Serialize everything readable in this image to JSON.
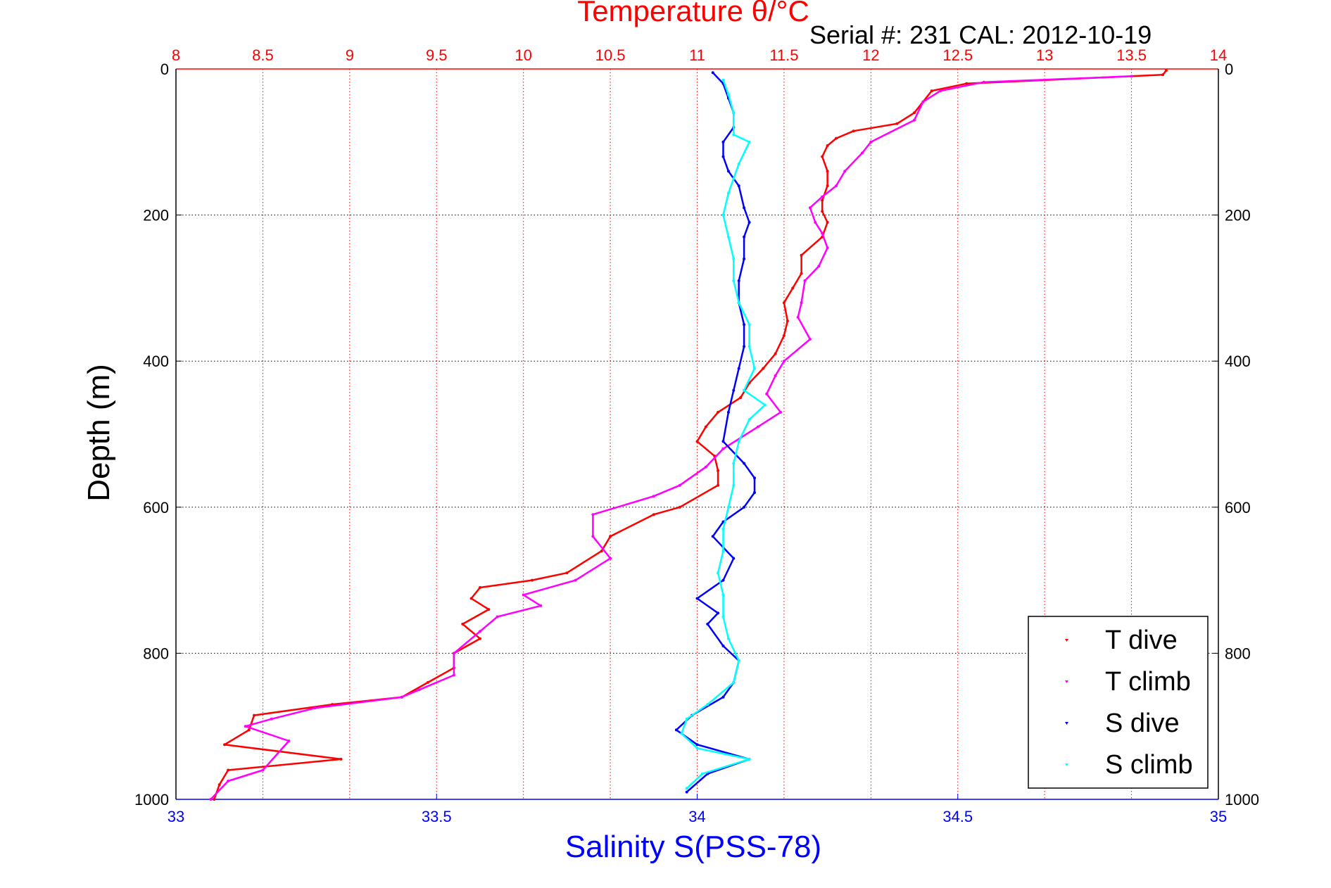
{
  "chart_data": {
    "type": "scatter",
    "title": "Temperature θ/°C",
    "serial_text": "Serial #: 231  CAL: 2012-10-19",
    "xlabel_bottom": "Salinity S(PSS-78)",
    "ylabel": "Depth (m)",
    "temperature_axis": {
      "range": [
        8,
        14
      ],
      "ticks": [
        "8",
        "8.5",
        "9",
        "9.5",
        "10",
        "10.5",
        "11",
        "11.5",
        "12",
        "12.5",
        "13",
        "13.5",
        "14"
      ]
    },
    "salinity_axis": {
      "range": [
        33,
        35
      ],
      "ticks": [
        "33",
        "33.5",
        "34",
        "34.5",
        "35"
      ]
    },
    "depth_axis": {
      "range": [
        0,
        1000
      ],
      "reversed": true,
      "ticks": [
        "0",
        "200",
        "400",
        "600",
        "800",
        "1000"
      ]
    },
    "grid": true,
    "legend_position": "bottom-right",
    "colors": {
      "t_dive": "#ff0000",
      "t_climb": "#ff00ff",
      "s_dive": "#0000ff",
      "s_climb": "#00ffff"
    },
    "series": [
      {
        "name": "T dive",
        "axis": "temperature",
        "points": [
          [
            13.7,
            2
          ],
          [
            13.68,
            8
          ],
          [
            12.55,
            20
          ],
          [
            12.35,
            30
          ],
          [
            12.3,
            45
          ],
          [
            12.25,
            60
          ],
          [
            12.15,
            75
          ],
          [
            11.9,
            85
          ],
          [
            11.8,
            95
          ],
          [
            11.75,
            105
          ],
          [
            11.72,
            120
          ],
          [
            11.75,
            140
          ],
          [
            11.75,
            160
          ],
          [
            11.72,
            180
          ],
          [
            11.72,
            195
          ],
          [
            11.75,
            210
          ],
          [
            11.72,
            230
          ],
          [
            11.6,
            255
          ],
          [
            11.6,
            280
          ],
          [
            11.55,
            300
          ],
          [
            11.5,
            320
          ],
          [
            11.52,
            345
          ],
          [
            11.5,
            365
          ],
          [
            11.45,
            390
          ],
          [
            11.38,
            410
          ],
          [
            11.3,
            430
          ],
          [
            11.25,
            450
          ],
          [
            11.12,
            470
          ],
          [
            11.05,
            490
          ],
          [
            11.0,
            510
          ],
          [
            11.1,
            530
          ],
          [
            11.12,
            550
          ],
          [
            11.12,
            570
          ],
          [
            10.9,
            600
          ],
          [
            10.75,
            610
          ],
          [
            10.5,
            640
          ],
          [
            10.45,
            660
          ],
          [
            10.25,
            690
          ],
          [
            10.05,
            700
          ],
          [
            9.75,
            710
          ],
          [
            9.7,
            725
          ],
          [
            9.8,
            740
          ],
          [
            9.65,
            760
          ],
          [
            9.75,
            780
          ],
          [
            9.6,
            800
          ],
          [
            9.6,
            820
          ],
          [
            9.45,
            840
          ],
          [
            9.3,
            860
          ],
          [
            8.9,
            870
          ],
          [
            8.45,
            885
          ],
          [
            8.42,
            905
          ],
          [
            8.28,
            925
          ],
          [
            8.95,
            945
          ],
          [
            8.3,
            960
          ],
          [
            8.25,
            980
          ],
          [
            8.22,
            1000
          ]
        ]
      },
      {
        "name": "T climb",
        "axis": "temperature",
        "points": [
          [
            13.5,
            10
          ],
          [
            12.65,
            18
          ],
          [
            12.4,
            30
          ],
          [
            12.3,
            45
          ],
          [
            12.25,
            70
          ],
          [
            12.0,
            100
          ],
          [
            11.95,
            115
          ],
          [
            11.85,
            140
          ],
          [
            11.8,
            160
          ],
          [
            11.72,
            175
          ],
          [
            11.65,
            190
          ],
          [
            11.68,
            210
          ],
          [
            11.72,
            225
          ],
          [
            11.75,
            245
          ],
          [
            11.7,
            270
          ],
          [
            11.62,
            290
          ],
          [
            11.6,
            320
          ],
          [
            11.58,
            340
          ],
          [
            11.65,
            370
          ],
          [
            11.5,
            400
          ],
          [
            11.45,
            420
          ],
          [
            11.4,
            445
          ],
          [
            11.48,
            470
          ],
          [
            11.35,
            490
          ],
          [
            11.15,
            520
          ],
          [
            11.05,
            545
          ],
          [
            10.9,
            570
          ],
          [
            10.75,
            585
          ],
          [
            10.4,
            610
          ],
          [
            10.4,
            640
          ],
          [
            10.5,
            670
          ],
          [
            10.3,
            700
          ],
          [
            10.0,
            720
          ],
          [
            10.1,
            735
          ],
          [
            9.85,
            750
          ],
          [
            9.75,
            770
          ],
          [
            9.6,
            800
          ],
          [
            9.6,
            830
          ],
          [
            9.4,
            850
          ],
          [
            9.3,
            860
          ],
          [
            8.8,
            875
          ],
          [
            8.55,
            890
          ],
          [
            8.4,
            900
          ],
          [
            8.65,
            920
          ],
          [
            8.5,
            960
          ],
          [
            8.3,
            975
          ],
          [
            8.2,
            1000
          ]
        ]
      },
      {
        "name": "S dive",
        "axis": "salinity",
        "points": [
          [
            34.03,
            5
          ],
          [
            34.05,
            20
          ],
          [
            34.06,
            40
          ],
          [
            34.07,
            60
          ],
          [
            34.07,
            80
          ],
          [
            34.05,
            100
          ],
          [
            34.05,
            120
          ],
          [
            34.06,
            140
          ],
          [
            34.08,
            160
          ],
          [
            34.09,
            190
          ],
          [
            34.1,
            210
          ],
          [
            34.09,
            230
          ],
          [
            34.09,
            260
          ],
          [
            34.08,
            290
          ],
          [
            34.08,
            320
          ],
          [
            34.09,
            350
          ],
          [
            34.09,
            380
          ],
          [
            34.08,
            410
          ],
          [
            34.07,
            440
          ],
          [
            34.06,
            470
          ],
          [
            34.05,
            510
          ],
          [
            34.09,
            540
          ],
          [
            34.11,
            560
          ],
          [
            34.11,
            580
          ],
          [
            34.09,
            600
          ],
          [
            34.05,
            620
          ],
          [
            34.03,
            640
          ],
          [
            34.07,
            670
          ],
          [
            34.05,
            700
          ],
          [
            34.0,
            725
          ],
          [
            34.04,
            745
          ],
          [
            34.02,
            760
          ],
          [
            34.05,
            790
          ],
          [
            34.08,
            810
          ],
          [
            34.07,
            840
          ],
          [
            34.05,
            860
          ],
          [
            33.99,
            885
          ],
          [
            33.96,
            905
          ],
          [
            34.0,
            925
          ],
          [
            34.1,
            945
          ],
          [
            34.02,
            965
          ],
          [
            33.98,
            990
          ]
        ]
      },
      {
        "name": "S climb",
        "axis": "salinity",
        "points": [
          [
            34.05,
            15
          ],
          [
            34.06,
            35
          ],
          [
            34.07,
            60
          ],
          [
            34.07,
            90
          ],
          [
            34.1,
            100
          ],
          [
            34.08,
            130
          ],
          [
            34.07,
            150
          ],
          [
            34.06,
            170
          ],
          [
            34.05,
            200
          ],
          [
            34.06,
            230
          ],
          [
            34.07,
            260
          ],
          [
            34.07,
            290
          ],
          [
            34.08,
            320
          ],
          [
            34.1,
            350
          ],
          [
            34.1,
            380
          ],
          [
            34.11,
            410
          ],
          [
            34.09,
            440
          ],
          [
            34.13,
            460
          ],
          [
            34.1,
            480
          ],
          [
            34.08,
            510
          ],
          [
            34.07,
            540
          ],
          [
            34.07,
            570
          ],
          [
            34.06,
            600
          ],
          [
            34.05,
            630
          ],
          [
            34.05,
            660
          ],
          [
            34.04,
            690
          ],
          [
            34.05,
            720
          ],
          [
            34.05,
            750
          ],
          [
            34.06,
            780
          ],
          [
            34.08,
            810
          ],
          [
            34.07,
            840
          ],
          [
            34.02,
            870
          ],
          [
            33.98,
            890
          ],
          [
            33.97,
            910
          ],
          [
            34.0,
            930
          ],
          [
            34.1,
            945
          ],
          [
            34.01,
            965
          ],
          [
            33.98,
            985
          ]
        ]
      }
    ]
  }
}
